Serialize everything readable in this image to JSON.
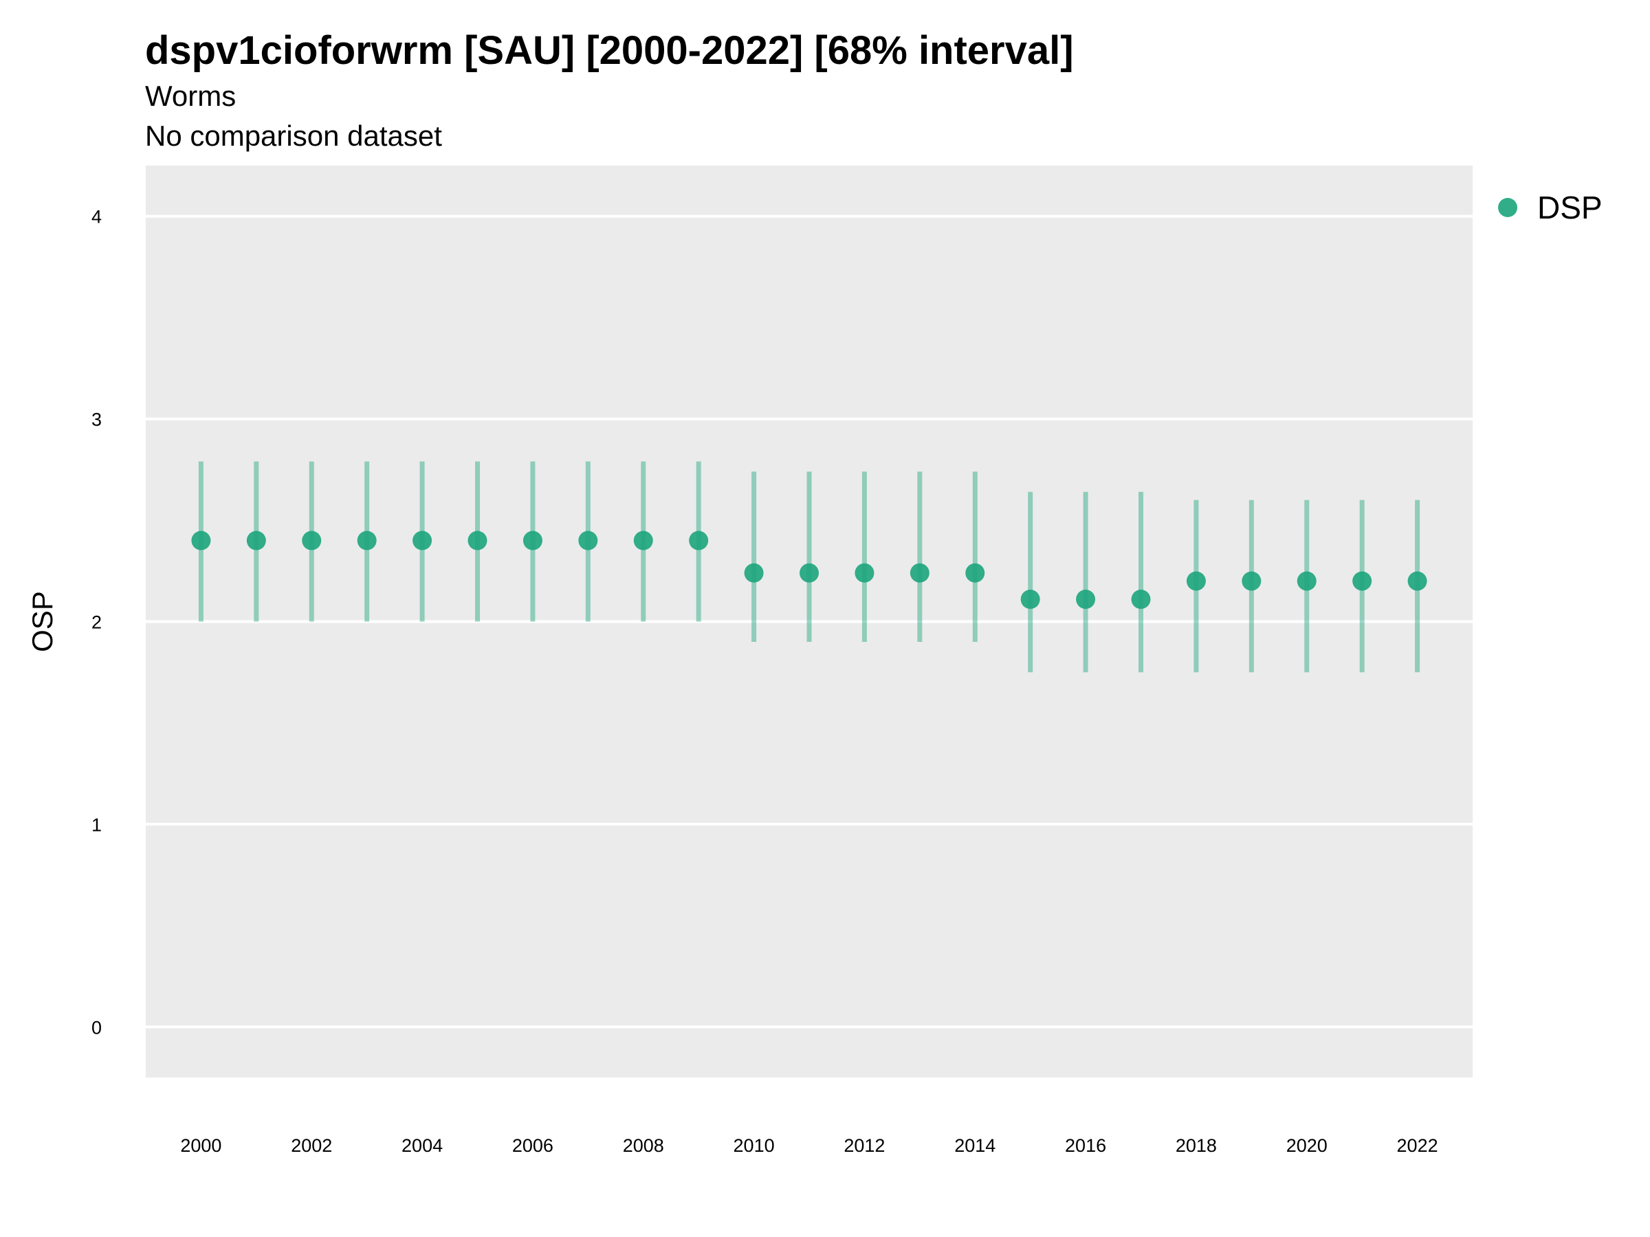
{
  "chart_data": {
    "type": "scatter",
    "title": "dspv1cioforwrm [SAU] [2000-2022] [68% interval]",
    "subtitle": "Worms",
    "caption": "No comparison dataset",
    "ylabel": "OSP",
    "xlabel": "",
    "ylim": [
      -0.25,
      4.25
    ],
    "xlim": [
      1999,
      2023
    ],
    "y_ticks": [
      0,
      1,
      2,
      3,
      4
    ],
    "x_ticks": [
      2000,
      2002,
      2004,
      2006,
      2008,
      2010,
      2012,
      2014,
      2016,
      2018,
      2020,
      2022
    ],
    "grid": true,
    "legend": "right",
    "series": [
      {
        "name": "DSP",
        "color": "#1fa67e",
        "x": [
          2000,
          2001,
          2002,
          2003,
          2004,
          2005,
          2006,
          2007,
          2008,
          2009,
          2010,
          2011,
          2012,
          2013,
          2014,
          2015,
          2016,
          2017,
          2018,
          2019,
          2020,
          2021,
          2022
        ],
        "y": [
          2.4,
          2.4,
          2.4,
          2.4,
          2.4,
          2.4,
          2.4,
          2.4,
          2.4,
          2.4,
          2.24,
          2.24,
          2.24,
          2.24,
          2.24,
          2.11,
          2.11,
          2.11,
          2.2,
          2.2,
          2.2,
          2.2,
          2.2
        ],
        "lower": [
          2.0,
          2.0,
          2.0,
          2.0,
          2.0,
          2.0,
          2.0,
          2.0,
          2.0,
          2.0,
          1.9,
          1.9,
          1.9,
          1.9,
          1.9,
          1.75,
          1.75,
          1.75,
          1.75,
          1.75,
          1.75,
          1.75,
          1.75
        ],
        "upper": [
          2.79,
          2.79,
          2.79,
          2.79,
          2.79,
          2.79,
          2.79,
          2.79,
          2.79,
          2.79,
          2.74,
          2.74,
          2.74,
          2.74,
          2.74,
          2.64,
          2.64,
          2.64,
          2.6,
          2.6,
          2.6,
          2.6,
          2.6
        ]
      }
    ]
  }
}
